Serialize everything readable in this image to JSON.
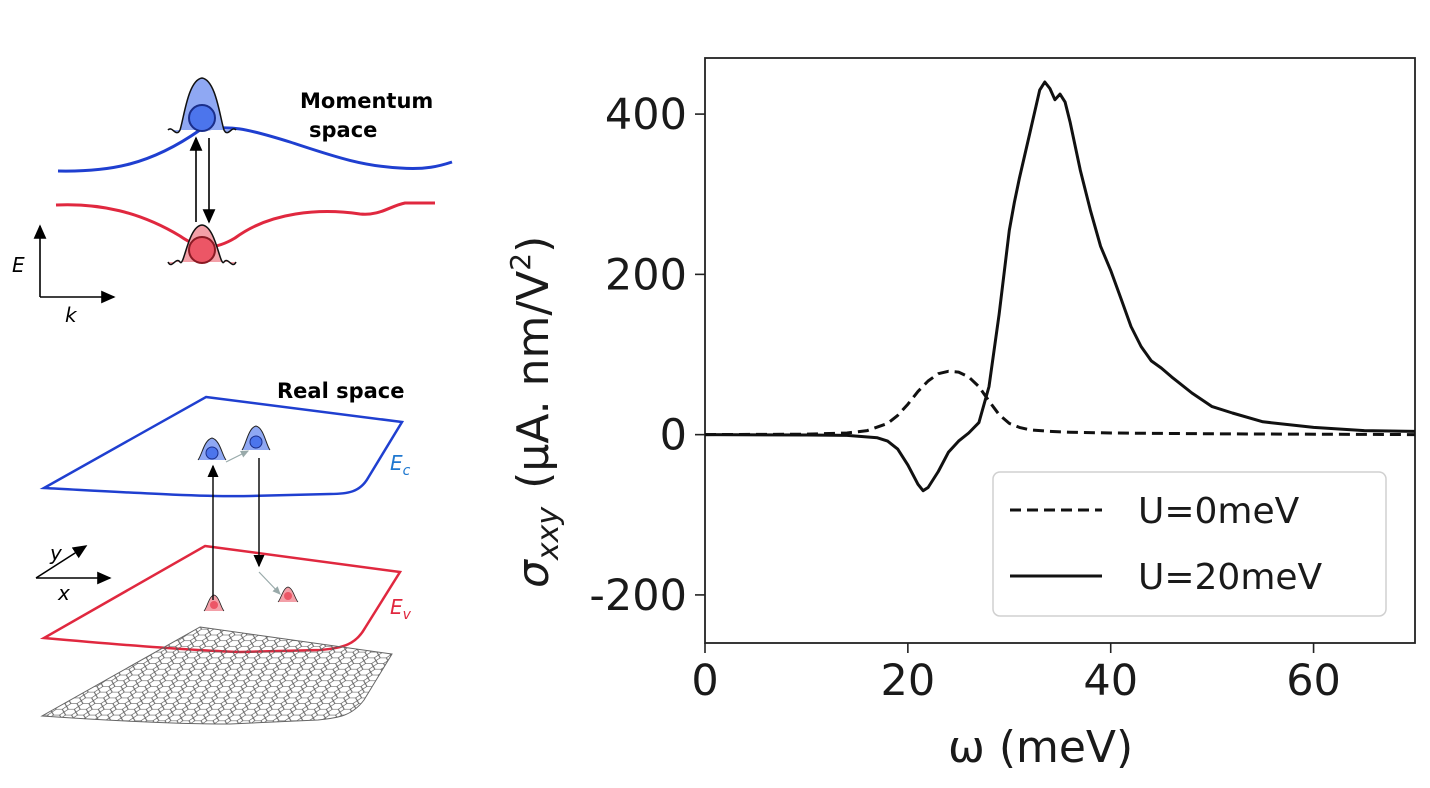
{
  "schematic": {
    "momentum_label_line1": "Momentum",
    "momentum_label_line2": "space",
    "energy_axis": "E",
    "k_axis": "k",
    "real_space_label": "Real space",
    "conduction_label": "E",
    "conduction_sub": "c",
    "valence_label": "E",
    "valence_sub": "v",
    "y_axis": "y",
    "x_axis": "x",
    "colors": {
      "conduction": "#1f3fd0",
      "valence": "#e0283f",
      "blue_fill": "#6f8ff0",
      "red_fill": "#f07a85"
    }
  },
  "chart_data": {
    "type": "line",
    "xlabel": "ω (meV)",
    "ylabel": "σ",
    "ylabel_sub": "xxy",
    "ylabel_units": "(μA. nm/V",
    "ylabel_units_sup": "2",
    "ylabel_units_close": ")",
    "xlim": [
      0,
      70
    ],
    "ylim": [
      -260,
      470
    ],
    "xticks": [
      0,
      20,
      40,
      60
    ],
    "yticks": [
      -200,
      0,
      200,
      400
    ],
    "legend_position": "lower-right",
    "grid": false,
    "series": [
      {
        "name": "U=0meV",
        "style": "dashed",
        "x": [
          0,
          10,
          14,
          16,
          18,
          19,
          20,
          21,
          22,
          23,
          24,
          25,
          26,
          27,
          28,
          29,
          30,
          31,
          32,
          34,
          36,
          40,
          50,
          70
        ],
        "y": [
          0,
          0.5,
          2,
          5,
          14,
          24,
          38,
          54,
          67,
          76,
          79,
          78,
          72,
          60,
          42,
          25,
          14,
          9,
          6,
          4,
          3,
          2,
          1,
          0
        ]
      },
      {
        "name": "U=20meV",
        "style": "solid",
        "x": [
          0,
          10,
          14,
          17,
          18,
          19,
          20,
          21,
          21.5,
          22,
          23,
          24,
          25,
          26,
          27,
          28,
          29,
          30,
          30.5,
          31,
          32,
          33,
          33.5,
          34,
          34.5,
          35,
          35.5,
          36,
          37,
          38,
          39,
          40,
          41,
          42,
          43,
          44,
          45,
          46,
          48,
          50,
          52,
          55,
          60,
          65,
          70
        ],
        "y": [
          0,
          -0.5,
          -1,
          -4,
          -8,
          -18,
          -38,
          -62,
          -70,
          -66,
          -46,
          -22,
          -8,
          2,
          15,
          60,
          150,
          255,
          290,
          320,
          375,
          430,
          440,
          432,
          418,
          425,
          415,
          390,
          330,
          280,
          235,
          205,
          170,
          135,
          110,
          92,
          83,
          72,
          52,
          35,
          27,
          16,
          9,
          5,
          4
        ]
      }
    ]
  }
}
